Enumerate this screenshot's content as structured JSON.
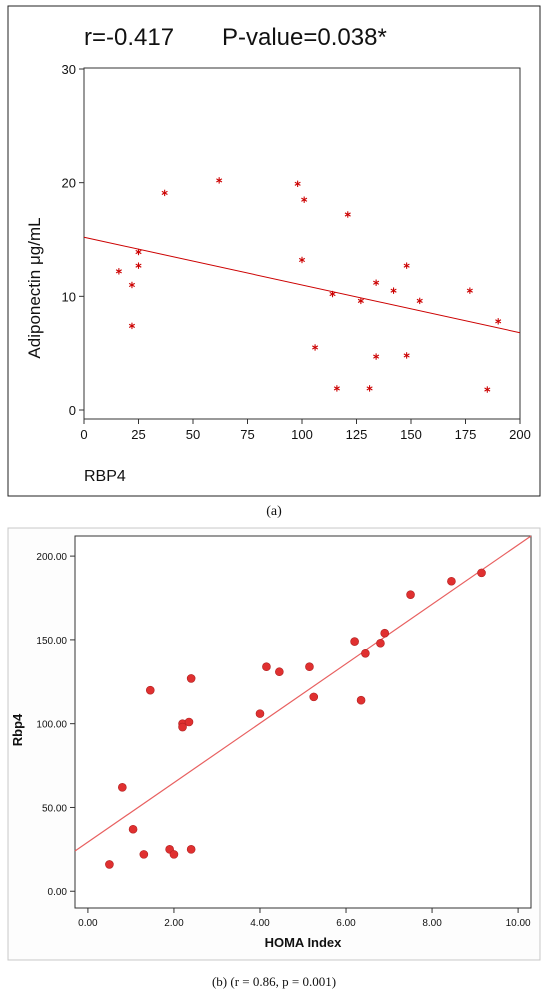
{
  "panel_a": {
    "stats_r": "r=-0.417",
    "stats_p": "P-value=0.038*",
    "caption": "(a)"
  },
  "panel_b": {
    "caption": "(b) (r = 0.86, p = 0.001)"
  },
  "colors": {
    "panel_a_marker": "#cc0000",
    "panel_b_marker": "#e03030",
    "panel_b_line": "#e86060"
  },
  "chart_data": [
    {
      "type": "scatter",
      "title": "",
      "xlabel": "RBP4",
      "ylabel": "Adiponectin μg/mL",
      "xlim": [
        0,
        200
      ],
      "ylim": [
        0,
        30
      ],
      "xticks": [
        "0",
        "25",
        "50",
        "75",
        "100",
        "125",
        "150",
        "175",
        "200"
      ],
      "yticks": [
        "0",
        "10",
        "20",
        "30"
      ],
      "marker": "asterisk",
      "points": [
        {
          "x": 16,
          "y": 12.2
        },
        {
          "x": 22,
          "y": 11.0
        },
        {
          "x": 22,
          "y": 7.4
        },
        {
          "x": 25,
          "y": 13.9
        },
        {
          "x": 25,
          "y": 12.7
        },
        {
          "x": 37,
          "y": 19.1
        },
        {
          "x": 62,
          "y": 20.2
        },
        {
          "x": 98,
          "y": 19.9
        },
        {
          "x": 101,
          "y": 18.5
        },
        {
          "x": 100,
          "y": 13.2
        },
        {
          "x": 106,
          "y": 5.5
        },
        {
          "x": 114,
          "y": 10.2
        },
        {
          "x": 116,
          "y": 1.9
        },
        {
          "x": 121,
          "y": 17.2
        },
        {
          "x": 127,
          "y": 9.6
        },
        {
          "x": 131,
          "y": 1.9
        },
        {
          "x": 134,
          "y": 11.2
        },
        {
          "x": 134,
          "y": 4.7
        },
        {
          "x": 142,
          "y": 10.5
        },
        {
          "x": 148,
          "y": 12.7
        },
        {
          "x": 148,
          "y": 4.8
        },
        {
          "x": 154,
          "y": 9.6
        },
        {
          "x": 177,
          "y": 10.5
        },
        {
          "x": 185,
          "y": 1.8
        },
        {
          "x": 190,
          "y": 7.8
        }
      ],
      "fit_line": {
        "x": [
          0,
          200
        ],
        "y": [
          15.2,
          6.8
        ]
      }
    },
    {
      "type": "scatter",
      "title": "",
      "xlabel": "HOMA Index",
      "ylabel": "Rbp4",
      "xlim": [
        -0.3,
        10.3
      ],
      "ylim": [
        -10,
        212
      ],
      "xticks": [
        "0.00",
        "2.00",
        "4.00",
        "6.00",
        "8.00",
        "10.00"
      ],
      "yticks": [
        "0.00",
        "50.00",
        "100.00",
        "150.00",
        "200.00"
      ],
      "marker": "dot",
      "points": [
        {
          "x": 0.5,
          "y": 16
        },
        {
          "x": 0.8,
          "y": 62
        },
        {
          "x": 1.05,
          "y": 37
        },
        {
          "x": 1.3,
          "y": 22
        },
        {
          "x": 1.45,
          "y": 120
        },
        {
          "x": 1.9,
          "y": 25
        },
        {
          "x": 2.0,
          "y": 22
        },
        {
          "x": 2.2,
          "y": 100
        },
        {
          "x": 2.2,
          "y": 98
        },
        {
          "x": 2.35,
          "y": 101
        },
        {
          "x": 2.4,
          "y": 127
        },
        {
          "x": 2.4,
          "y": 25
        },
        {
          "x": 4.0,
          "y": 106
        },
        {
          "x": 4.15,
          "y": 134
        },
        {
          "x": 4.45,
          "y": 131
        },
        {
          "x": 5.15,
          "y": 134
        },
        {
          "x": 5.25,
          "y": 116
        },
        {
          "x": 6.2,
          "y": 149
        },
        {
          "x": 6.35,
          "y": 114
        },
        {
          "x": 6.45,
          "y": 142
        },
        {
          "x": 6.8,
          "y": 148
        },
        {
          "x": 6.9,
          "y": 154
        },
        {
          "x": 7.5,
          "y": 177
        },
        {
          "x": 8.45,
          "y": 185
        },
        {
          "x": 9.15,
          "y": 190
        }
      ],
      "fit_line": {
        "x": [
          -0.3,
          10.3
        ],
        "y": [
          24,
          212
        ]
      }
    }
  ]
}
